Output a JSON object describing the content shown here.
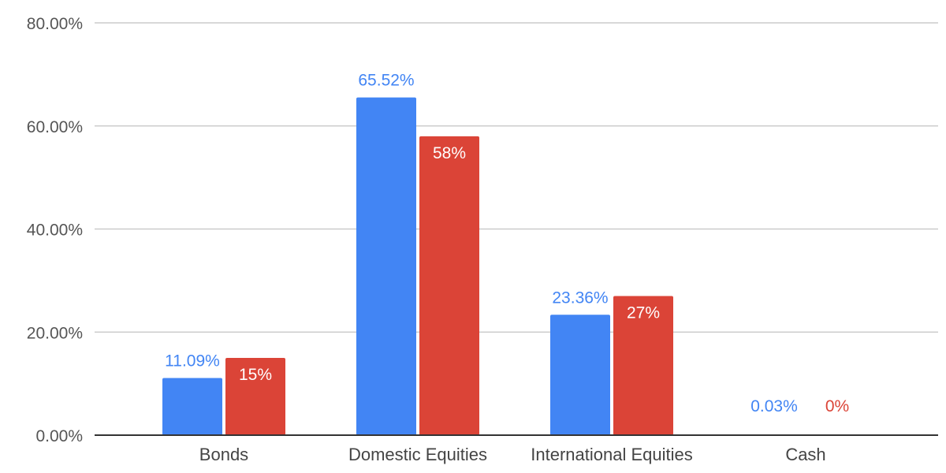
{
  "chart_data": {
    "type": "bar",
    "title": "",
    "xlabel": "",
    "ylabel": "",
    "categories": [
      "Bonds",
      "Domestic Equities",
      "International Equities",
      "Cash"
    ],
    "series": [
      {
        "color": "#4285F4",
        "values": [
          11.09,
          65.52,
          23.36,
          0.03
        ],
        "labels": [
          "11.09%",
          "65.52%",
          "23.36%",
          "0.03%"
        ],
        "label_position": "outside"
      },
      {
        "color": "#DB4437",
        "values": [
          15,
          58,
          27,
          0
        ],
        "labels": [
          "15%",
          "58%",
          "27%",
          "0%"
        ],
        "label_position": "inside"
      }
    ],
    "ylim": [
      0,
      80
    ],
    "yticks": [
      0,
      20,
      40,
      60,
      80
    ],
    "ytick_labels": [
      "0.00%",
      "20.00%",
      "40.00%",
      "60.00%",
      "80.00%"
    ],
    "grid": true,
    "legend": "none"
  }
}
